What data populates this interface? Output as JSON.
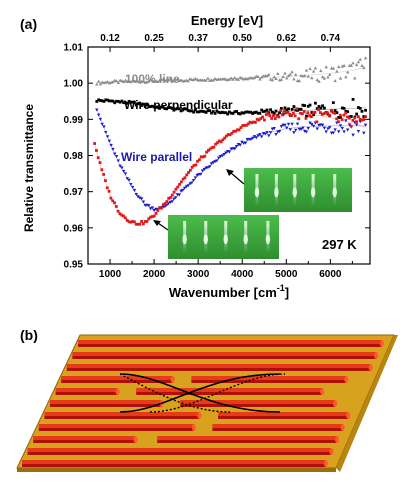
{
  "panel_a_label": "(a)",
  "panel_b_label": "(b)",
  "colors": {
    "reference": "#8c8c8c",
    "perpendicular": "#000000",
    "parallel_blue": "#1a1acc",
    "parallel_red": "#e01818",
    "parallel_label": "#1a1aa8",
    "inset_bg": "#3aa63a",
    "inset_streak": "#c8f5c8",
    "wire_top": "#e63a18",
    "wire_front": "#b0100a",
    "substrate": "#d9a21e",
    "substrate_edge": "#8a6410"
  },
  "chart_data": {
    "type": "scatter",
    "xlabel": "Wavenumber [cm",
    "xlabel_sup": "-1",
    "xlabel_tail": "]",
    "ylabel": "Relative transmittance",
    "top_axis_label": "Energy [eV]",
    "xlim": [
      500,
      6900
    ],
    "ylim": [
      0.95,
      1.01
    ],
    "x_ticks": [
      "1000",
      "2000",
      "3000",
      "4000",
      "5000",
      "6000"
    ],
    "x_tick_values": [
      1000,
      2000,
      3000,
      4000,
      5000,
      6000
    ],
    "y_ticks": [
      "0.95",
      "0.96",
      "0.97",
      "0.98",
      "0.99",
      "1.00",
      "1.01"
    ],
    "y_tick_values": [
      0.95,
      0.96,
      0.97,
      0.98,
      0.99,
      1.0,
      1.01
    ],
    "top_ticks": [
      "0.12",
      "0.25",
      "0.37",
      "0.50",
      "0.62",
      "0.74"
    ],
    "top_tick_values": [
      1000,
      2000,
      3000,
      4000,
      5000,
      6000
    ],
    "temperature_label": "297 K",
    "grid": false,
    "series": [
      {
        "name": "100% line",
        "color": "#8c8c8c",
        "marker": "triangle",
        "points": [
          [
            700,
            1.0001
          ],
          [
            1000,
            1.0003
          ],
          [
            1500,
            1.0005
          ],
          [
            2000,
            1.0006
          ],
          [
            2500,
            1.0008
          ],
          [
            3000,
            1.001
          ],
          [
            3500,
            1.0012
          ],
          [
            4000,
            1.0014
          ],
          [
            4500,
            1.0016
          ],
          [
            5000,
            1.0018
          ],
          [
            5500,
            1.0022
          ],
          [
            6000,
            1.0027
          ],
          [
            6500,
            1.0035
          ],
          [
            6800,
            1.0045
          ]
        ]
      },
      {
        "name": "Wire perpendicular",
        "color": "#000000",
        "marker": "square",
        "points": [
          [
            700,
            0.9952
          ],
          [
            1000,
            0.9951
          ],
          [
            1500,
            0.9945
          ],
          [
            2000,
            0.9935
          ],
          [
            2500,
            0.9928
          ],
          [
            3000,
            0.9922
          ],
          [
            3500,
            0.9919
          ],
          [
            4000,
            0.9918
          ],
          [
            4500,
            0.992
          ],
          [
            5000,
            0.9922
          ],
          [
            5500,
            0.9925
          ],
          [
            6000,
            0.9928
          ],
          [
            6500,
            0.993
          ],
          [
            6800,
            0.9932
          ]
        ]
      },
      {
        "name": "Wire parallel",
        "color": "#1a1acc",
        "marker": "triangle-down",
        "points": [
          [
            700,
            0.993
          ],
          [
            800,
            0.9895
          ],
          [
            1000,
            0.9835
          ],
          [
            1200,
            0.978
          ],
          [
            1400,
            0.9735
          ],
          [
            1600,
            0.9695
          ],
          [
            1800,
            0.9665
          ],
          [
            2000,
            0.9652
          ],
          [
            2200,
            0.9655
          ],
          [
            2500,
            0.9685
          ],
          [
            3000,
            0.9745
          ],
          [
            3500,
            0.9795
          ],
          [
            4000,
            0.9835
          ],
          [
            4500,
            0.986
          ],
          [
            5000,
            0.9875
          ],
          [
            5500,
            0.988
          ],
          [
            6000,
            0.9882
          ],
          [
            6500,
            0.9882
          ],
          [
            6800,
            0.9882
          ]
        ]
      },
      {
        "name": "",
        "color": "#e01818",
        "marker": "square",
        "points": [
          [
            650,
            0.9835
          ],
          [
            700,
            0.981
          ],
          [
            800,
            0.9765
          ],
          [
            1000,
            0.969
          ],
          [
            1200,
            0.9645
          ],
          [
            1400,
            0.9622
          ],
          [
            1600,
            0.9612
          ],
          [
            1800,
            0.9615
          ],
          [
            2000,
            0.9635
          ],
          [
            2300,
            0.9675
          ],
          [
            2600,
            0.9725
          ],
          [
            3000,
            0.9785
          ],
          [
            3500,
            0.984
          ],
          [
            4000,
            0.988
          ],
          [
            4500,
            0.9905
          ],
          [
            5000,
            0.9918
          ],
          [
            5500,
            0.9915
          ],
          [
            6000,
            0.9905
          ],
          [
            6500,
            0.989
          ],
          [
            6800,
            0.9878
          ]
        ]
      }
    ],
    "insets": [
      {
        "name": "rheed-large",
        "anchor": [
          3500,
          0.9746
        ]
      },
      {
        "name": "rheed-small",
        "anchor": [
          2000,
          0.9625
        ]
      }
    ]
  }
}
